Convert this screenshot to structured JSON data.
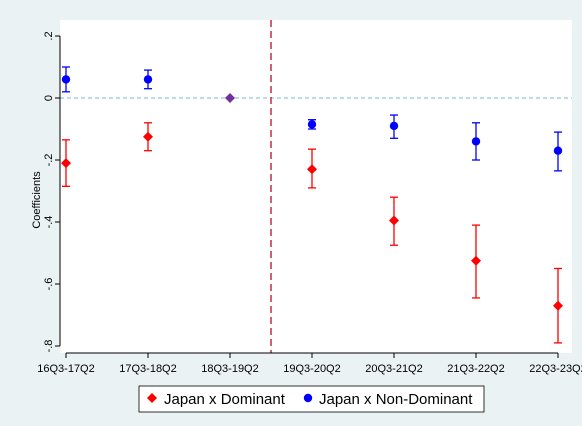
{
  "chart_data": {
    "type": "scatter",
    "ylabel": "Coefficients",
    "xlabel": "",
    "categories": [
      "16Q3-17Q2",
      "17Q3-18Q2",
      "18Q3-19Q2",
      "19Q3-20Q2",
      "20Q3-21Q2",
      "21Q3-22Q2",
      "22Q3-23Q2"
    ],
    "ylim": [
      -0.8,
      0.2
    ],
    "yticks": [
      ".2",
      "0",
      "-.2",
      "-.4",
      "-.6",
      "-.8"
    ],
    "yticks_values": [
      0.2,
      0,
      -0.2,
      -0.4,
      -0.6,
      -0.8
    ],
    "reference_line": {
      "axis": "y",
      "value": 0,
      "color": "#7fb9c9",
      "style": "dashed"
    },
    "event_line": {
      "axis": "x",
      "between": [
        "18Q3-19Q2",
        "19Q3-20Q2"
      ],
      "color": "#c8385a",
      "style": "dashed"
    },
    "series": [
      {
        "name": "Japan x Dominant",
        "marker": "diamond",
        "color": "#ff0000",
        "values": [
          -0.21,
          -0.125,
          null,
          -0.23,
          -0.395,
          -0.525,
          -0.67
        ],
        "ci_low": [
          -0.285,
          -0.17,
          null,
          -0.29,
          -0.475,
          -0.645,
          -0.79
        ],
        "ci_high": [
          -0.135,
          -0.08,
          null,
          -0.165,
          -0.32,
          -0.41,
          -0.55
        ]
      },
      {
        "name": "Japan x Non-Dominant",
        "marker": "circle",
        "color": "#0000ff",
        "values": [
          0.06,
          0.06,
          null,
          -0.085,
          -0.09,
          -0.14,
          -0.17
        ],
        "ci_low": [
          0.02,
          0.03,
          null,
          -0.1,
          -0.13,
          -0.2,
          -0.235
        ],
        "ci_high": [
          0.1,
          0.09,
          null,
          -0.07,
          -0.055,
          -0.08,
          -0.11
        ]
      },
      {
        "name": "",
        "marker": "diamond",
        "color": "#7030a0",
        "values": [
          null,
          null,
          0,
          null,
          null,
          null,
          null
        ],
        "ci_low": [
          null,
          null,
          null,
          null,
          null,
          null,
          null
        ],
        "ci_high": [
          null,
          null,
          null,
          null,
          null,
          null,
          null
        ]
      }
    ],
    "legend": {
      "placement": "bottom",
      "entries": [
        "Japan x Dominant",
        "Japan x Non-Dominant"
      ]
    },
    "grid": false
  }
}
